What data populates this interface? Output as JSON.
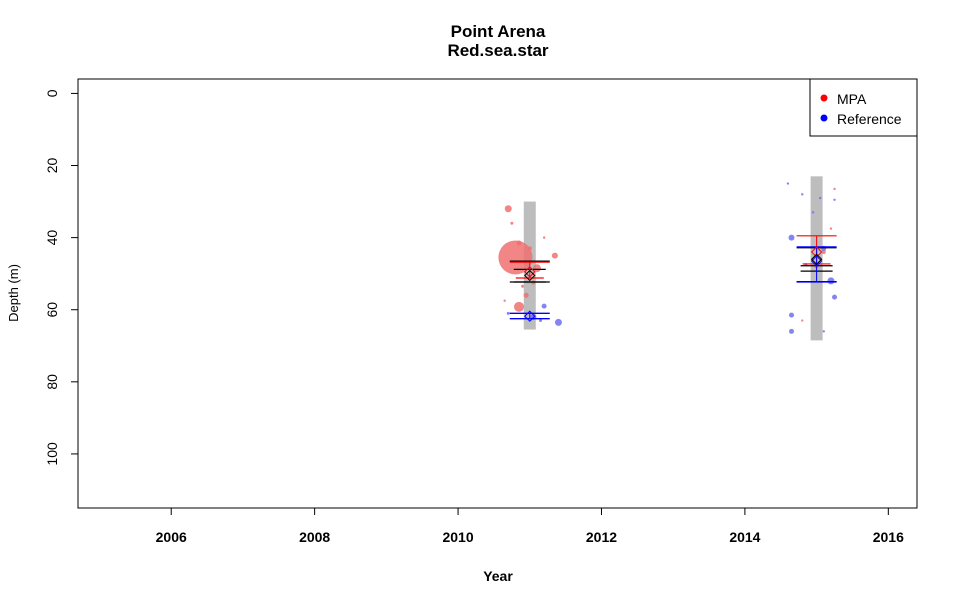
{
  "chart_data": {
    "type": "scatter",
    "title": "Point Arena",
    "subtitle": "Red.sea.star",
    "xlabel": "Year",
    "ylabel": "Depth (m)",
    "xlim": [
      2004.7,
      2016.4
    ],
    "ylim": [
      115,
      -4
    ],
    "y_reversed": true,
    "x_ticks": [
      2006,
      2008,
      2010,
      2012,
      2014,
      2016
    ],
    "y_ticks": [
      0,
      20,
      40,
      60,
      80,
      100
    ],
    "legend": {
      "position": "top-right",
      "entries": [
        {
          "label": "MPA",
          "color": "#ff0000"
        },
        {
          "label": "Reference",
          "color": "#0000ff"
        }
      ]
    },
    "colors": {
      "mpa_points": "#f07070",
      "mpa_lines": "#ff0000",
      "ref_points": "#7070f0",
      "ref_lines": "#0000ff",
      "range_bar": "#bdbdbd",
      "overall_lines": "#000000"
    },
    "survey_years": [
      {
        "year": 2011,
        "depth_range": [
          30,
          65.5
        ],
        "overall": {
          "mean": 50.5,
          "ci_low": 48.8,
          "ci_high": 52.3,
          "sd_low": 46.5,
          "sd_high": 52.3
        },
        "mpa": {
          "mean": 49.5,
          "ci_low": 46.8,
          "ci_high": 51.2
        },
        "reference": {
          "mean": 61.8,
          "ci_low": 61,
          "ci_high": 62.5
        },
        "mpa_points": [
          {
            "x": 2010.8,
            "y": 45.5,
            "size": 17
          },
          {
            "x": 2010.85,
            "y": 59.2,
            "size": 5
          },
          {
            "x": 2010.7,
            "y": 32,
            "size": 3.5
          },
          {
            "x": 2011.1,
            "y": 48.5,
            "size": 4
          },
          {
            "x": 2011.35,
            "y": 45,
            "size": 3
          },
          {
            "x": 2010.95,
            "y": 56,
            "size": 2.5
          },
          {
            "x": 2010.85,
            "y": 41.5,
            "size": 2.5
          },
          {
            "x": 2011.0,
            "y": 43,
            "size": 2
          },
          {
            "x": 2010.75,
            "y": 36,
            "size": 1.5
          },
          {
            "x": 2011.05,
            "y": 52.5,
            "size": 2
          },
          {
            "x": 2010.65,
            "y": 57.5,
            "size": 1.2
          },
          {
            "x": 2011.2,
            "y": 40,
            "size": 1.2
          },
          {
            "x": 2010.9,
            "y": 53.5,
            "size": 1.5
          }
        ],
        "ref_points": [
          {
            "x": 2011.4,
            "y": 63.5,
            "size": 3.5
          },
          {
            "x": 2011.2,
            "y": 59,
            "size": 2.5
          },
          {
            "x": 2011.05,
            "y": 62,
            "size": 3
          },
          {
            "x": 2010.7,
            "y": 61,
            "size": 1.5
          },
          {
            "x": 2011.15,
            "y": 63,
            "size": 1.5
          }
        ]
      },
      {
        "year": 2015,
        "depth_range": [
          23,
          68.5
        ],
        "overall": {
          "mean": 46,
          "ci_low": 47.8,
          "ci_high": 49.3,
          "sd_low": 42.8,
          "sd_high": 52.2
        },
        "mpa": {
          "mean": 44,
          "ci_low": 39.5,
          "ci_high": 47.3
        },
        "reference": {
          "mean": 46.5,
          "ci_low": 42.6,
          "ci_high": 52.3
        },
        "mpa_points": [
          {
            "x": 2014.8,
            "y": 63,
            "size": 1.2
          },
          {
            "x": 2015.0,
            "y": 48,
            "size": 2
          },
          {
            "x": 2015.25,
            "y": 26.5,
            "size": 1.2
          },
          {
            "x": 2015.2,
            "y": 37.5,
            "size": 1.2
          },
          {
            "x": 2015.1,
            "y": 44,
            "size": 2
          }
        ],
        "ref_points": [
          {
            "x": 2014.65,
            "y": 40,
            "size": 3
          },
          {
            "x": 2015.2,
            "y": 52,
            "size": 3.5
          },
          {
            "x": 2015.25,
            "y": 56.5,
            "size": 2.5
          },
          {
            "x": 2014.65,
            "y": 61.5,
            "size": 2.5
          },
          {
            "x": 2014.65,
            "y": 66,
            "size": 2.5
          },
          {
            "x": 2014.6,
            "y": 25,
            "size": 1.2
          },
          {
            "x": 2014.8,
            "y": 28,
            "size": 1.2
          },
          {
            "x": 2015.05,
            "y": 29,
            "size": 1.2
          },
          {
            "x": 2015.25,
            "y": 29.5,
            "size": 1.2
          },
          {
            "x": 2014.95,
            "y": 33,
            "size": 1.2
          },
          {
            "x": 2015.1,
            "y": 43,
            "size": 2.5
          },
          {
            "x": 2015.1,
            "y": 66,
            "size": 1.2
          },
          {
            "x": 2014.85,
            "y": 47.5,
            "size": 1.5
          }
        ]
      }
    ]
  }
}
